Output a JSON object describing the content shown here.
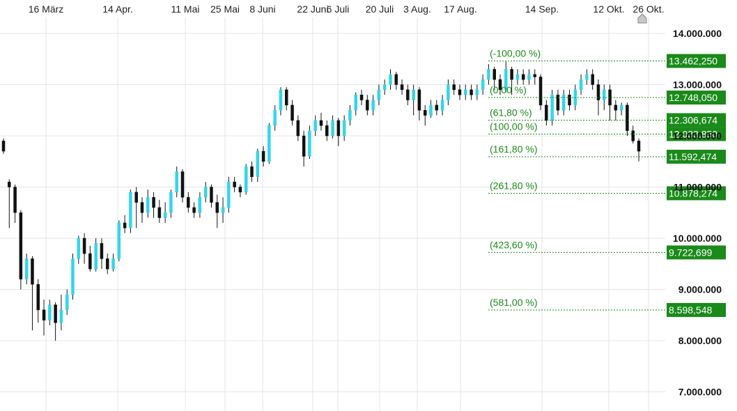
{
  "chart_data": {
    "type": "candlestick",
    "x_ticks": [
      "16 März",
      "14 Apr.",
      "11 Mai",
      "25 Mai",
      "8 Juni",
      "22 Juni",
      "6 Juli",
      "20 Juli",
      "3 Aug.",
      "17 Aug.",
      "14 Sep.",
      "12 Okt.",
      "26 Okt."
    ],
    "y_ticks": [
      7000000,
      8000000,
      9000000,
      10000000,
      11000000,
      12000000,
      13000000,
      14000000
    ],
    "y_tick_labels": [
      "7.000.000",
      "8.000.000",
      "9.000.000",
      "10.000.000",
      "11.000.000",
      "12.000.000",
      "13.000.000",
      "14.000.000"
    ],
    "ylim": [
      6700000,
      14600000
    ],
    "grid": true,
    "colors": {
      "up": "#33d6ea",
      "down": "#111111",
      "fib": "#1a8a1a",
      "grid": "#e4e4e4"
    },
    "candles": [
      [
        11.9,
        11.7,
        11.95,
        11.65
      ],
      [
        11.1,
        11.0,
        11.15,
        10.2
      ],
      [
        11.0,
        10.5,
        11.05,
        10.3
      ],
      [
        10.5,
        9.2,
        10.55,
        9.0
      ],
      [
        9.2,
        9.6,
        9.7,
        9.1
      ],
      [
        9.6,
        9.1,
        9.65,
        8.2
      ],
      [
        9.1,
        8.6,
        9.2,
        8.35
      ],
      [
        8.6,
        8.4,
        8.8,
        8.1
      ],
      [
        8.4,
        8.7,
        8.8,
        8.3
      ],
      [
        8.7,
        8.35,
        8.75,
        8.0
      ],
      [
        8.35,
        8.6,
        8.9,
        8.2
      ],
      [
        8.6,
        8.9,
        9.0,
        8.5
      ],
      [
        8.9,
        9.6,
        9.7,
        8.8
      ],
      [
        9.6,
        10.0,
        10.05,
        9.5
      ],
      [
        10.0,
        9.7,
        10.1,
        9.5
      ],
      [
        9.7,
        9.4,
        9.85,
        9.35
      ],
      [
        9.4,
        9.9,
        10.0,
        9.35
      ],
      [
        9.9,
        9.6,
        10.0,
        9.4
      ],
      [
        9.6,
        9.4,
        9.7,
        9.3
      ],
      [
        9.4,
        9.6,
        9.7,
        9.35
      ],
      [
        9.6,
        10.3,
        10.35,
        9.55
      ],
      [
        10.3,
        10.2,
        10.45,
        10.1
      ],
      [
        10.2,
        10.9,
        10.95,
        10.1
      ],
      [
        10.9,
        10.7,
        11.0,
        10.2
      ],
      [
        10.7,
        10.5,
        10.8,
        10.3
      ],
      [
        10.5,
        10.8,
        10.95,
        10.4
      ],
      [
        10.8,
        10.6,
        10.9,
        10.4
      ],
      [
        10.6,
        10.4,
        10.75,
        10.3
      ],
      [
        10.4,
        10.5,
        10.7,
        10.3
      ],
      [
        10.5,
        10.9,
        10.95,
        10.4
      ],
      [
        10.9,
        11.3,
        11.4,
        10.8
      ],
      [
        11.3,
        10.8,
        11.35,
        10.7
      ],
      [
        10.8,
        10.6,
        10.9,
        10.5
      ],
      [
        10.6,
        10.5,
        10.7,
        10.4
      ],
      [
        10.5,
        10.8,
        10.9,
        10.4
      ],
      [
        10.8,
        11.0,
        11.1,
        10.7
      ],
      [
        11.0,
        10.7,
        11.05,
        10.6
      ],
      [
        10.7,
        10.5,
        10.85,
        10.2
      ],
      [
        10.5,
        10.6,
        10.8,
        10.3
      ],
      [
        10.6,
        11.1,
        11.2,
        10.5
      ],
      [
        11.1,
        11.0,
        11.2,
        10.9
      ],
      [
        11.0,
        10.9,
        11.05,
        10.8
      ],
      [
        10.9,
        11.4,
        11.45,
        10.85
      ],
      [
        11.4,
        11.2,
        11.5,
        11.1
      ],
      [
        11.2,
        11.7,
        11.75,
        11.1
      ],
      [
        11.7,
        11.5,
        11.8,
        11.4
      ],
      [
        11.5,
        12.2,
        12.25,
        11.45
      ],
      [
        12.2,
        12.5,
        12.6,
        12.1
      ],
      [
        12.5,
        12.9,
        12.95,
        12.4
      ],
      [
        12.9,
        12.6,
        12.95,
        12.5
      ],
      [
        12.6,
        12.3,
        12.7,
        12.2
      ],
      [
        12.3,
        12.0,
        12.4,
        11.9
      ],
      [
        12.0,
        11.6,
        12.1,
        11.4
      ],
      [
        11.6,
        12.1,
        12.2,
        11.55
      ],
      [
        12.1,
        12.3,
        12.4,
        12.0
      ],
      [
        12.3,
        12.2,
        12.45,
        12.1
      ],
      [
        12.2,
        12.0,
        12.3,
        11.9
      ],
      [
        12.0,
        12.3,
        12.4,
        11.95
      ],
      [
        12.3,
        12.0,
        12.35,
        11.8
      ],
      [
        12.0,
        12.3,
        12.4,
        11.9
      ],
      [
        12.3,
        12.5,
        12.6,
        12.2
      ],
      [
        12.5,
        12.8,
        12.85,
        12.4
      ],
      [
        12.8,
        12.7,
        12.9,
        12.6
      ],
      [
        12.7,
        12.5,
        12.8,
        12.4
      ],
      [
        12.5,
        12.7,
        12.8,
        12.4
      ],
      [
        12.7,
        12.9,
        13.0,
        12.6
      ],
      [
        12.9,
        13.0,
        13.1,
        12.8
      ],
      [
        13.0,
        13.2,
        13.3,
        12.9
      ],
      [
        13.2,
        13.0,
        13.25,
        12.9
      ],
      [
        13.0,
        12.9,
        13.1,
        12.8
      ],
      [
        12.9,
        12.7,
        13.0,
        12.6
      ],
      [
        12.7,
        12.9,
        13.0,
        12.4
      ],
      [
        12.9,
        12.5,
        12.95,
        12.3
      ],
      [
        12.5,
        12.4,
        12.6,
        12.2
      ],
      [
        12.4,
        12.6,
        12.7,
        12.35
      ],
      [
        12.6,
        12.5,
        12.7,
        12.4
      ],
      [
        12.5,
        12.7,
        12.8,
        12.4
      ],
      [
        12.7,
        13.0,
        13.1,
        12.6
      ],
      [
        13.0,
        12.9,
        13.1,
        12.8
      ],
      [
        12.9,
        12.8,
        13.0,
        12.7
      ],
      [
        12.8,
        12.9,
        13.0,
        12.7
      ],
      [
        12.9,
        12.8,
        13.0,
        12.7
      ],
      [
        12.8,
        12.9,
        13.0,
        12.7
      ],
      [
        12.9,
        13.1,
        13.2,
        12.8
      ],
      [
        13.1,
        13.3,
        13.4,
        13.0
      ],
      [
        13.3,
        13.1,
        13.35,
        12.9
      ],
      [
        13.1,
        12.9,
        13.2,
        12.8
      ],
      [
        12.9,
        13.3,
        13.45,
        12.85
      ],
      [
        13.3,
        13.1,
        13.35,
        12.8
      ],
      [
        13.1,
        13.2,
        13.3,
        13.0
      ],
      [
        13.2,
        13.1,
        13.3,
        13.0
      ],
      [
        13.1,
        13.2,
        13.3,
        13.0
      ],
      [
        13.2,
        13.15,
        13.3,
        13.0
      ],
      [
        13.15,
        12.6,
        13.2,
        12.5
      ],
      [
        12.6,
        12.3,
        12.7,
        12.2
      ],
      [
        12.3,
        12.8,
        12.9,
        12.2
      ],
      [
        12.8,
        12.5,
        12.9,
        12.4
      ],
      [
        12.5,
        12.8,
        12.9,
        12.4
      ],
      [
        12.8,
        12.6,
        12.9,
        12.5
      ],
      [
        12.6,
        12.9,
        13.0,
        12.5
      ],
      [
        12.9,
        13.1,
        13.2,
        12.8
      ],
      [
        13.1,
        13.2,
        13.3,
        13.0
      ],
      [
        13.2,
        13.0,
        13.3,
        12.9
      ],
      [
        13.0,
        12.7,
        13.1,
        12.4
      ],
      [
        12.7,
        12.9,
        13.0,
        12.5
      ],
      [
        12.9,
        12.6,
        13.0,
        12.3
      ],
      [
        12.6,
        12.5,
        12.7,
        12.3
      ],
      [
        12.5,
        12.6,
        12.65,
        12.4
      ],
      [
        12.6,
        12.1,
        12.65,
        12.0
      ],
      [
        12.1,
        11.9,
        12.2,
        11.85
      ],
      [
        11.9,
        11.7,
        11.95,
        11.5
      ]
    ],
    "fib_levels": [
      {
        "label": "(-100,00 %)",
        "value": "13.462,250",
        "price": 13462250
      },
      {
        "label": "(0,00 %)",
        "value": "12.748,050",
        "price": 12748050
      },
      {
        "label": "(61,80 %)",
        "value": "12.306,674",
        "price": 12306674
      },
      {
        "label": "(100,00 %)",
        "value": "12.033,850",
        "price": 12033850
      },
      {
        "label": "(161,80 %)",
        "value": "11.592,474",
        "price": 11592474
      },
      {
        "label": "(261,80 %)",
        "value": "10.878,274",
        "price": 10878274
      },
      {
        "label": "(423,60 %)",
        "value": "9.722,699",
        "price": 9722699
      },
      {
        "label": "(581,00 %)",
        "value": "8.598,548",
        "price": 8598548
      }
    ]
  }
}
